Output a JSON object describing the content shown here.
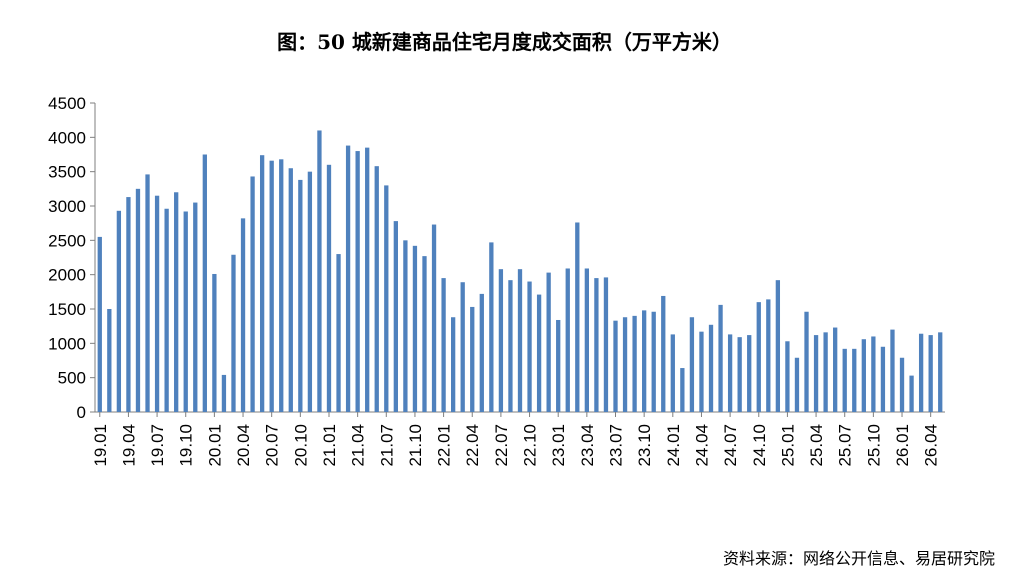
{
  "chart_data": {
    "type": "bar",
    "title": "图：50 城新建商品住宅月度成交面积（万平方米）",
    "ylim": [
      0,
      4500
    ],
    "yticks": [
      0,
      500,
      1000,
      1500,
      2000,
      2500,
      3000,
      3500,
      4000,
      4500
    ],
    "xtick_labels": [
      "19.01",
      "19.04",
      "19.07",
      "19.10",
      "20.01",
      "20.04",
      "20.07",
      "20.10",
      "21.01",
      "21.04",
      "21.07",
      "21.10",
      "22.01",
      "22.04",
      "22.07",
      "22.10",
      "23.01",
      "23.04",
      "23.07",
      "23.10",
      "24.01",
      "24.04",
      "24.07",
      "24.10",
      "25.01",
      "25.04",
      "25.07",
      "25.10",
      "26.01",
      "26.04"
    ],
    "grid": false,
    "legend": "none",
    "bar_color": "#4F81BD",
    "categories": [
      "19.01",
      "19.02",
      "19.03",
      "19.04",
      "19.05",
      "19.06",
      "19.07",
      "19.08",
      "19.09",
      "19.10",
      "19.11",
      "19.12",
      "20.01",
      "20.02",
      "20.03",
      "20.04",
      "20.05",
      "20.06",
      "20.07",
      "20.08",
      "20.09",
      "20.10",
      "20.11",
      "20.12",
      "21.01",
      "21.02",
      "21.03",
      "21.04",
      "21.05",
      "21.06",
      "21.07",
      "21.08",
      "21.09",
      "21.10",
      "21.11",
      "21.12",
      "22.01",
      "22.02",
      "22.03",
      "22.04",
      "22.05",
      "22.06",
      "22.07",
      "22.08",
      "22.09",
      "22.10",
      "22.11",
      "22.12",
      "23.01",
      "23.02",
      "23.03",
      "23.04",
      "23.05",
      "23.06",
      "23.07",
      "23.08",
      "23.09",
      "23.10",
      "23.11",
      "23.12",
      "24.01",
      "24.02",
      "24.03",
      "24.04",
      "24.05",
      "24.06",
      "24.07",
      "24.08",
      "24.09",
      "24.10",
      "24.11",
      "24.12",
      "25.01",
      "25.02",
      "25.03",
      "25.04",
      "25.05",
      "25.06",
      "25.07",
      "25.08",
      "25.09",
      "25.10",
      "25.11",
      "25.12",
      "26.01",
      "26.02",
      "26.03",
      "26.04",
      "26.05"
    ],
    "values": [
      2550,
      1500,
      2930,
      3130,
      3250,
      3460,
      3150,
      2960,
      3200,
      2920,
      3050,
      3750,
      2010,
      540,
      2290,
      2820,
      3430,
      3740,
      3660,
      3680,
      3550,
      3380,
      3500,
      4100,
      3600,
      2300,
      3880,
      3800,
      3850,
      3580,
      3300,
      2780,
      2500,
      2420,
      2270,
      2730,
      1950,
      1380,
      1890,
      1530,
      1720,
      2470,
      2080,
      1920,
      2080,
      1900,
      1710,
      2030,
      1340,
      2090,
      2760,
      2090,
      1950,
      1960,
      1330,
      1380,
      1400,
      1480,
      1460,
      1690,
      1130,
      640,
      1380,
      1170,
      1270,
      1560,
      1130,
      1090,
      1120,
      1600,
      1640,
      1920,
      1030,
      790,
      1460,
      1120,
      1160,
      1230,
      920,
      920,
      1060,
      1100,
      950,
      1200,
      790,
      530,
      1140,
      1120,
      1160
    ]
  },
  "source_text": "资料来源：网络公开信息、易居研究院"
}
